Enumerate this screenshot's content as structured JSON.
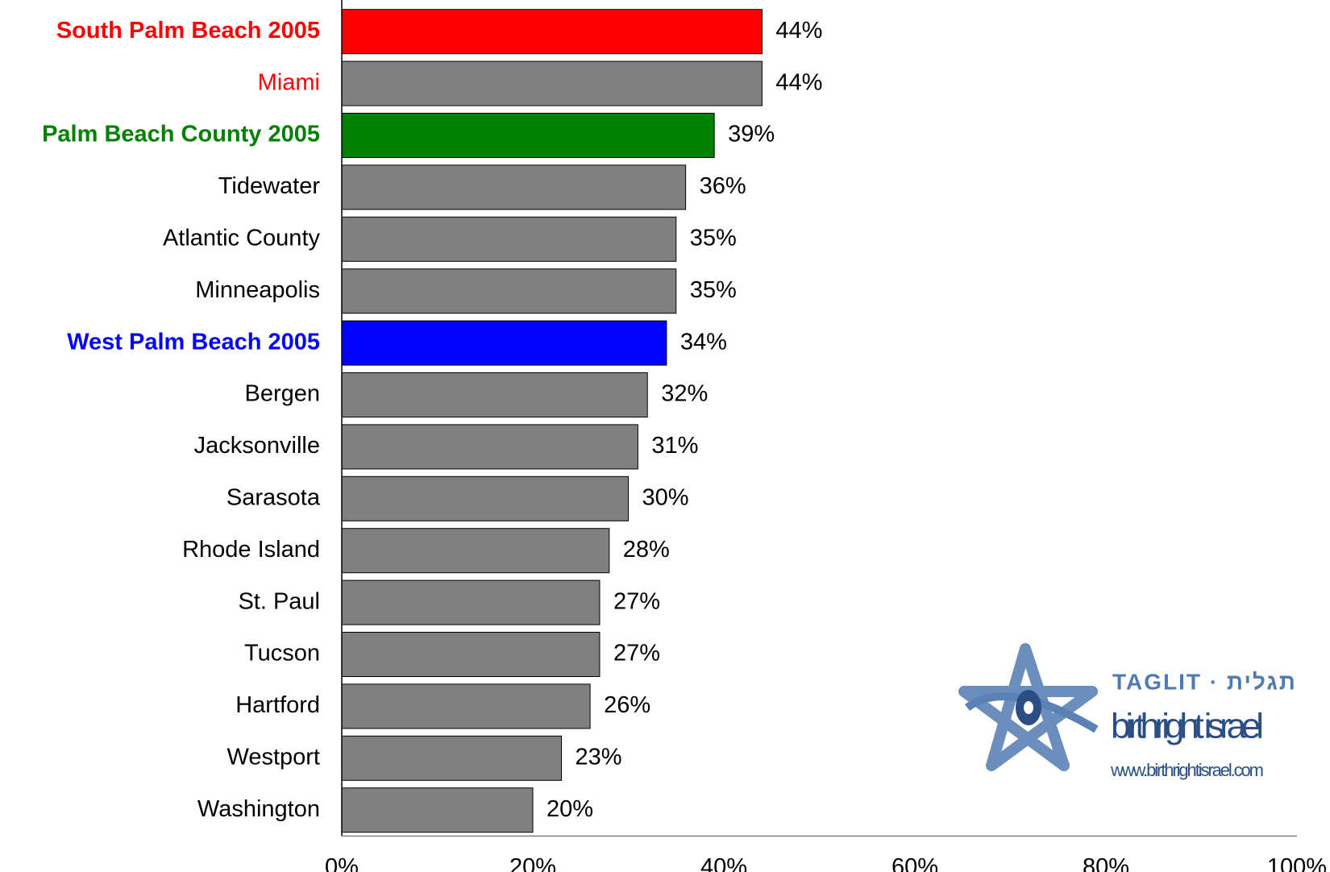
{
  "chart_data": {
    "type": "bar",
    "orientation": "horizontal",
    "categories": [
      "South Palm Beach 2005",
      "Miami",
      "Palm Beach County 2005",
      "Tidewater",
      "Atlantic County",
      "Minneapolis",
      "West Palm Beach 2005",
      "Bergen",
      "Jacksonville",
      "Sarasota",
      "Rhode Island",
      "St. Paul",
      "Tucson",
      "Hartford",
      "Westport",
      "Washington"
    ],
    "values": [
      44,
      44,
      39,
      36,
      35,
      35,
      34,
      32,
      31,
      30,
      28,
      27,
      27,
      26,
      23,
      20
    ],
    "value_labels": [
      "44%",
      "44%",
      "39%",
      "36%",
      "35%",
      "35%",
      "34%",
      "32%",
      "31%",
      "30%",
      "28%",
      "27%",
      "27%",
      "26%",
      "23%",
      "20%"
    ],
    "colors": [
      "#ff0000",
      "#808080",
      "#008000",
      "#808080",
      "#808080",
      "#808080",
      "#0000ff",
      "#808080",
      "#808080",
      "#808080",
      "#808080",
      "#808080",
      "#808080",
      "#808080",
      "#808080",
      "#808080"
    ],
    "label_colors": [
      "#ff0000",
      "#ff0000",
      "#008000",
      "#000000",
      "#000000",
      "#000000",
      "#0000ff",
      "#000000",
      "#000000",
      "#000000",
      "#000000",
      "#000000",
      "#000000",
      "#000000",
      "#000000",
      "#000000"
    ],
    "xlim": [
      0,
      100
    ],
    "xticks": [
      {
        "value": 0,
        "label": "0%"
      },
      {
        "value": 20,
        "label": "20%"
      },
      {
        "value": 40,
        "label": "40%"
      },
      {
        "value": 60,
        "label": "60%"
      },
      {
        "value": 80,
        "label": "80%"
      },
      {
        "value": 100,
        "label": "100%"
      }
    ],
    "grid": false
  },
  "logo": {
    "brand": "TAGLIT · תגלית",
    "name": "birthright israel",
    "url": "www.birthrightisrael.com"
  }
}
